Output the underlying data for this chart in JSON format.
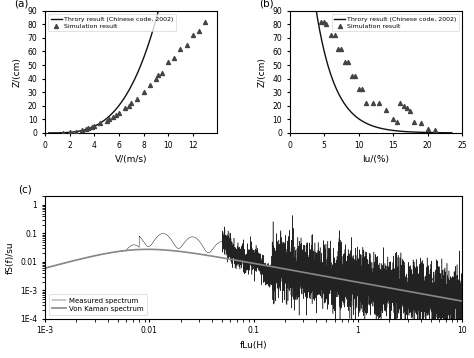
{
  "title_a": "(a)",
  "title_b": "(b)",
  "title_c": "(c)",
  "legend_theory": "Throry result (Chinese code, 2002)",
  "legend_sim": "Simulation result",
  "legend_measured": "Measured spectrum",
  "legend_vonkarman": "Von Kaman spectrum",
  "xlabel_a": "V/(m/s)",
  "xlabel_b": "Iu/(%)",
  "xlabel_c": "fLu(H)",
  "ylabel_ab": "Z/(cm)",
  "ylabel_c": "fS(f)/su",
  "xlim_a": [
    0,
    14
  ],
  "xlim_b": [
    0,
    25
  ],
  "ylim_ab": [
    0,
    90
  ],
  "xticks_a": [
    0,
    2,
    4,
    6,
    8,
    10,
    12
  ],
  "xticks_b": [
    0,
    5,
    10,
    15,
    20,
    25
  ],
  "yticks_ab": [
    0,
    10,
    20,
    30,
    40,
    50,
    60,
    70,
    80,
    90
  ],
  "sim_a_x": [
    1.5,
    2.0,
    2.5,
    3.0,
    3.3,
    3.5,
    3.8,
    4.0,
    4.5,
    5.0,
    5.2,
    5.5,
    5.8,
    6.0,
    6.5,
    6.8,
    7.0,
    7.5,
    8.0,
    8.5,
    9.0,
    9.2,
    9.5,
    10.0,
    10.5,
    11.0,
    11.5,
    12.0,
    12.5,
    13.0
  ],
  "sim_a_y": [
    0.3,
    0.5,
    1.0,
    2.0,
    3.0,
    3.5,
    4.0,
    5.0,
    7.0,
    8.5,
    10.0,
    12.0,
    13.0,
    15.0,
    18.0,
    20.0,
    22.0,
    25.0,
    30.0,
    35.0,
    40.0,
    43.0,
    44.0,
    52.0,
    55.0,
    62.0,
    65.0,
    72.0,
    75.0,
    82.0
  ],
  "sim_b_x": [
    4.5,
    5.0,
    5.2,
    6.0,
    6.5,
    7.0,
    7.5,
    8.0,
    8.5,
    9.0,
    9.5,
    10.0,
    10.5,
    11.0,
    12.0,
    13.0,
    14.0,
    15.0,
    15.5,
    16.0,
    16.5,
    17.0,
    17.5,
    18.0,
    19.0,
    20.0,
    21.0
  ],
  "sim_b_y": [
    82.0,
    82.0,
    80.0,
    72.0,
    72.0,
    62.0,
    62.0,
    52.0,
    52.0,
    42.0,
    42.0,
    32.0,
    32.0,
    22.0,
    22.0,
    22.0,
    17.0,
    10.0,
    8.0,
    22.0,
    20.0,
    18.0,
    16.0,
    8.0,
    7.0,
    3.0,
    2.0
  ],
  "background_color": "#ffffff",
  "line_color": "#111111",
  "marker_color": "#444444"
}
